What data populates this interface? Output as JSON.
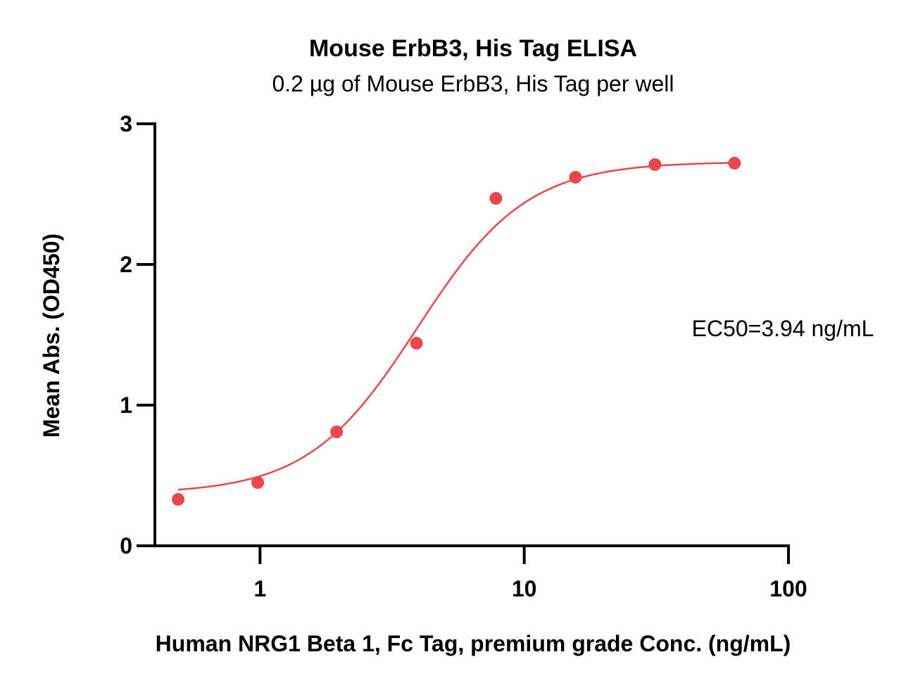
{
  "chart_data": {
    "type": "scatter",
    "title": "Mouse ErbB3, His Tag ELISA",
    "subtitle": "0.2 µg of Mouse ErbB3, His Tag per well",
    "xlabel": "Human NRG1 Beta 1, Fc Tag, premium grade Conc. (ng/mL)",
    "ylabel": "Mean Abs. (OD450)",
    "x_scale": "log",
    "xlim": [
      0.4,
      100
    ],
    "ylim": [
      0,
      3
    ],
    "x_ticks": [
      1,
      10,
      100
    ],
    "x_tick_labels": [
      "1",
      "10",
      "100"
    ],
    "y_ticks": [
      0,
      1,
      2,
      3
    ],
    "y_tick_labels": [
      "0",
      "1",
      "2",
      "3"
    ],
    "grid": false,
    "color": "#e8474c",
    "series": [
      {
        "x": [
          0.49,
          0.98,
          1.95,
          3.91,
          7.81,
          15.63,
          31.25,
          62.5
        ],
        "y": [
          0.33,
          0.45,
          0.81,
          1.44,
          2.47,
          2.62,
          2.71,
          2.72
        ]
      }
    ],
    "fit": {
      "model": "4PL",
      "bottom": 0.37,
      "top": 2.73,
      "ec50": 3.94,
      "hill": 2.1,
      "x_range": [
        0.49,
        62.5
      ]
    },
    "annotations": [
      "EC50=3.94 ng/mL"
    ]
  }
}
